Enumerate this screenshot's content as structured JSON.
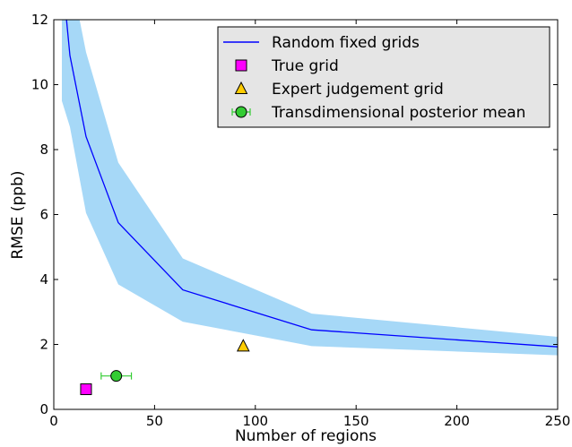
{
  "chart_data": {
    "type": "line",
    "title": "",
    "xlabel": "Number of regions",
    "ylabel": "RMSE (ppb)",
    "xlim": [
      0,
      250
    ],
    "ylim": [
      0,
      12
    ],
    "x_ticks": [
      0,
      50,
      100,
      150,
      200,
      250
    ],
    "y_ticks": [
      0,
      2,
      4,
      6,
      8,
      10,
      12
    ],
    "grid": false,
    "legend_position": "top-right",
    "series": [
      {
        "name": "Random fixed grids",
        "kind": "line-with-band",
        "color": "#0000ff",
        "band_color": "#a6d8f7",
        "x": [
          4,
          8,
          16,
          32,
          64,
          128,
          256
        ],
        "y": [
          13.5,
          10.9,
          8.4,
          5.75,
          3.68,
          2.45,
          1.9
        ],
        "band_low": [
          9.5,
          8.7,
          6.05,
          3.85,
          2.7,
          1.95,
          1.65
        ],
        "band_high": [
          16.5,
          13.5,
          11.0,
          7.6,
          4.65,
          2.95,
          2.2
        ]
      },
      {
        "name": "True grid",
        "kind": "marker",
        "marker": "square",
        "color": "#ff00ff",
        "x": [
          16
        ],
        "y": [
          0.62
        ]
      },
      {
        "name": "Expert judgement grid",
        "kind": "marker",
        "marker": "triangle",
        "color": "#ffcc00",
        "x": [
          94
        ],
        "y": [
          1.95
        ]
      },
      {
        "name": "Transdimensional posterior mean",
        "kind": "marker-errorbar",
        "marker": "circle",
        "color": "#33cc33",
        "errorbar_color": "#33cc33",
        "x": [
          31
        ],
        "y": [
          1.03
        ],
        "x_err": [
          7.5
        ]
      }
    ]
  }
}
